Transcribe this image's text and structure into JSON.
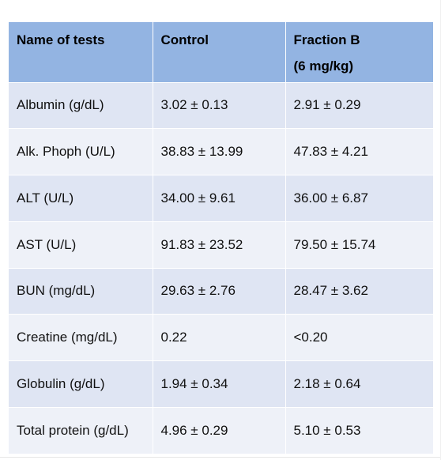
{
  "table": {
    "headers": [
      "Name of tests",
      "Control",
      "Fraction B",
      "(6 mg/kg)"
    ],
    "rows": [
      [
        "Albumin (g/dL)",
        "3.02 ± 0.13",
        "2.91 ± 0.29"
      ],
      [
        "Alk. Phoph (U/L)",
        "38.83 ± 13.99",
        "47.83 ± 4.21"
      ],
      [
        "ALT (U/L)",
        "34.00 ± 9.61",
        "36.00 ± 6.87"
      ],
      [
        "AST (U/L)",
        "91.83 ± 23.52",
        "79.50 ± 15.74"
      ],
      [
        "BUN (mg/dL)",
        "29.63 ± 2.76",
        "28.47 ± 3.62"
      ],
      [
        "Creatine (mg/dL)",
        "0.22",
        "<0.20"
      ],
      [
        "Globulin (g/dL)",
        "1.94 ± 0.34",
        "2.18 ± 0.64"
      ],
      [
        "Total protein (g/dL)",
        "4.96 ± 0.29",
        "5.10 ± 0.53"
      ]
    ]
  },
  "colors": {
    "header_bg": "#93b4e2",
    "row_odd_bg": "#dfe5f3",
    "row_even_bg": "#eef1f8"
  }
}
